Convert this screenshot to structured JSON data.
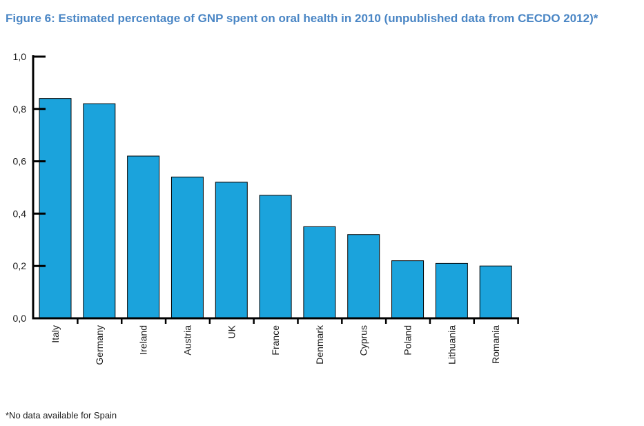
{
  "title": "Figure 6: Estimated percentage of GNP spent on oral health in 2010 (unpublished data from CECDO 2012)*",
  "footnote": "*No data available for Spain",
  "colors": {
    "bar": "#1ba3dc",
    "title": "#4a86c5",
    "axis": "#000000"
  },
  "chart_data": {
    "type": "bar",
    "title": "Figure 6: Estimated percentage of GNP spent on oral health in 2010 (unpublished data from CECDO 2012)*",
    "xlabel": "",
    "ylabel": "",
    "categories": [
      "Italy",
      "Germany",
      "Ireland",
      "Austria",
      "UK",
      "France",
      "Denmark",
      "Cyprus",
      "Poland",
      "Lithuania",
      "Romania"
    ],
    "values": [
      0.84,
      0.82,
      0.62,
      0.54,
      0.52,
      0.47,
      0.35,
      0.32,
      0.22,
      0.21,
      0.2
    ],
    "ylim": [
      0,
      1.0
    ],
    "yticks": [
      0.0,
      0.2,
      0.4,
      0.6,
      0.8,
      1.0
    ],
    "ytick_labels": [
      "0,0",
      "0,2",
      "0,4",
      "0,6",
      "0,8",
      "1,0"
    ],
    "grid": false,
    "legend": "none"
  }
}
